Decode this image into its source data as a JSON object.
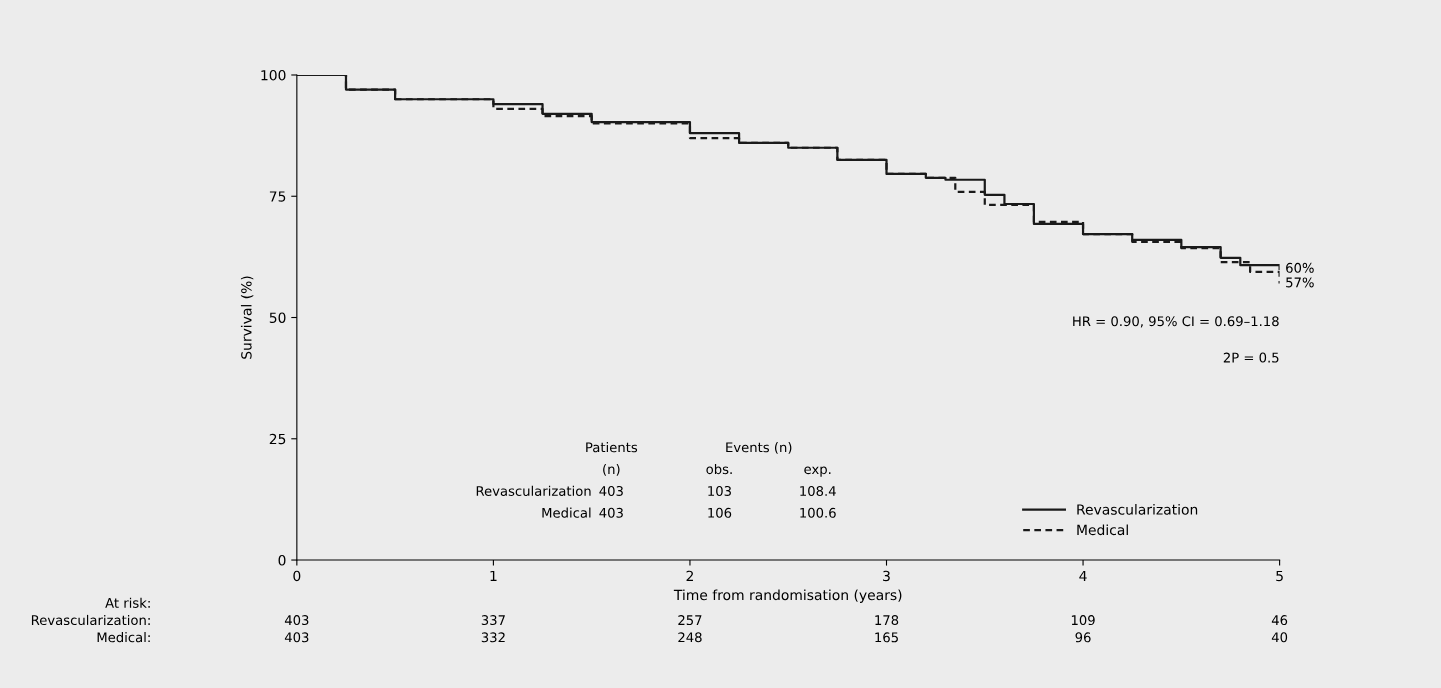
{
  "chart_data": {
    "type": "step",
    "xlabel": "Time from randomisation (years)",
    "ylabel": "Survival (%)",
    "xlim": [
      0,
      5
    ],
    "ylim": [
      0,
      100
    ],
    "xticks": [
      0,
      1,
      2,
      3,
      4,
      5
    ],
    "yticks": [
      0,
      25,
      50,
      75,
      100
    ],
    "grid": false,
    "legend": "bottom right",
    "marker": "none",
    "series": [
      {
        "name": "Revascularization",
        "color": "#1a1a1a",
        "line_style": "solid",
        "x": [
          0,
          0.25,
          0.5,
          1.0,
          1.25,
          1.5,
          2.0,
          2.25,
          2.5,
          2.75,
          3.0,
          3.2,
          3.3,
          3.5,
          3.6,
          3.75,
          4.0,
          4.25,
          4.5,
          4.7,
          4.8,
          5.0
        ],
        "values": [
          100,
          97,
          95,
          94,
          92,
          90.3,
          88,
          86,
          85,
          82.5,
          79.6,
          78.8,
          78.4,
          75.3,
          73.4,
          69.3,
          67.2,
          66,
          64.5,
          62.3,
          60.8,
          60
        ]
      },
      {
        "name": "Medical",
        "color": "#1a1a1a",
        "line_style": "dashed",
        "x": [
          0,
          0.25,
          0.5,
          1.0,
          1.25,
          1.5,
          2.0,
          2.25,
          2.5,
          2.75,
          3.0,
          3.2,
          3.35,
          3.5,
          3.75,
          4.0,
          4.25,
          4.5,
          4.7,
          4.85,
          5.0
        ],
        "values": [
          100,
          97,
          95,
          93,
          91.5,
          90,
          87,
          86,
          85,
          82.5,
          79.6,
          78.8,
          75.9,
          73.2,
          69.7,
          67.2,
          65.6,
          64.3,
          61.4,
          59.4,
          57
        ]
      }
    ],
    "annotations": [
      {
        "text": "60%",
        "x": 5,
        "y": 60
      },
      {
        "text": "57%",
        "x": 5,
        "y": 57
      },
      "HR = 0.90, 95% CI = 0.69–1.18",
      "2P = 0.5",
      "Patients",
      "Events (n)",
      "(n)",
      "obs.",
      "exp.",
      "Revascularization",
      "403",
      "103",
      "108.4",
      "Medical",
      "403",
      "106",
      "100.6",
      "At risk:",
      "Revascularization:",
      "403",
      "337",
      "257",
      "178",
      "109",
      "46",
      "Medical:",
      "403",
      "332",
      "248",
      "165",
      "96",
      "40"
    ]
  }
}
